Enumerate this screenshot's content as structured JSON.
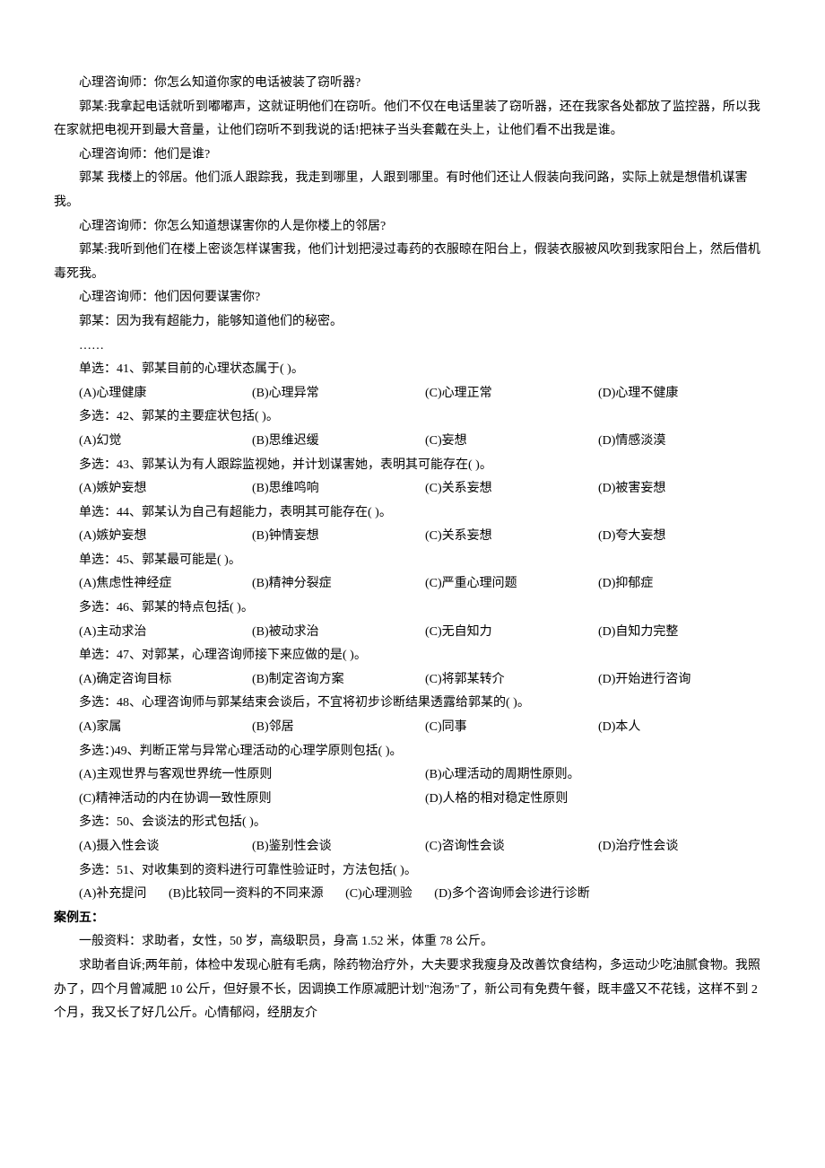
{
  "dialogue": [
    "心理咨询师：你怎么知道你家的电话被装了窃听器?",
    "郭某:我拿起电话就听到嘟嘟声，这就证明他们在窃听。他们不仅在电话里装了窃听器，还在我家各处都放了监控器，所以我在家就把电视开到最大音量，让他们窃听不到我说的话!把袜子当头套戴在头上，让他们看不出我是谁。",
    "心理咨询师：他们是谁?",
    "郭某 我楼上的邻居。他们派人跟踪我，我走到哪里，人跟到哪里。有时他们还让人假装向我问路，实际上就是想借机谋害我。",
    "心理咨询师：你怎么知道想谋害你的人是你楼上的邻居?",
    "郭某:我听到他们在楼上密谈怎样谋害我，他们计划把浸过毒药的衣服晾在阳台上，假装衣服被风吹到我家阳台上，然后借机毒死我。",
    "心理咨询师：他们因何要谋害你?",
    "郭某：因为我有超能力，能够知道他们的秘密。",
    "……"
  ],
  "questions": [
    {
      "stem": "单选：41、郭某目前的心理状态属于( )。",
      "layout": "four",
      "options": [
        "(A)心理健康",
        "(B)心理异常",
        "(C)心理正常",
        "(D)心理不健康"
      ]
    },
    {
      "stem": "多选：42、郭某的主要症状包括( )。",
      "layout": "four",
      "options": [
        "(A)幻觉",
        "(B)思维迟缓",
        "(C)妄想",
        "(D)情感淡漠"
      ]
    },
    {
      "stem": "多选：43、郭某认为有人跟踪监视她，并计划谋害她，表明其可能存在( )。",
      "layout": "four",
      "options": [
        "(A)嫉妒妄想",
        "(B)思维鸣响",
        "(C)关系妄想",
        "(D)被害妄想"
      ]
    },
    {
      "stem": "单选：44、郭某认为自己有超能力，表明其可能存在( )。",
      "layout": "four",
      "options": [
        "(A)嫉妒妄想",
        "(B)钟情妄想",
        "(C)关系妄想",
        "(D)夸大妄想"
      ]
    },
    {
      "stem": "单选：45、郭某最可能是( )。",
      "layout": "four",
      "options": [
        "(A)焦虑性神经症",
        "(B)精神分裂症",
        "(C)严重心理问题",
        "(D)抑郁症"
      ]
    },
    {
      "stem": "多选：46、郭某的特点包括( )。",
      "layout": "four",
      "options": [
        "(A)主动求治",
        "(B)被动求治",
        "(C)无自知力",
        "(D)自知力完整"
      ]
    },
    {
      "stem": "单选：47、对郭某，心理咨询师接下来应做的是( )。",
      "layout": "four",
      "options": [
        "(A)确定咨询目标",
        "(B)制定咨询方案",
        "(C)将郭某转介",
        "(D)开始进行咨询"
      ]
    },
    {
      "stem": "多选：48、心理咨询师与郭某结束会谈后，不宜将初步诊断结果透露给郭某的( )。",
      "layout": "four",
      "options": [
        "(A)家属",
        "(B)邻居",
        "(C)同事",
        "(D)本人"
      ]
    },
    {
      "stem": "多选：)49、判断正常与异常心理活动的心理学原则包括( )。",
      "layout": "two",
      "options": [
        "(A)主观世界与客观世界统一性原则",
        "(B)心理活动的周期性原则。",
        "(C)精神活动的内在协调一致性原则",
        "(D)人格的相对稳定性原则"
      ]
    },
    {
      "stem": "多选：50、会谈法的形式包括( )。",
      "layout": "four",
      "options": [
        "(A)摄入性会谈",
        "(B)鉴别性会谈",
        "(C)咨询性会谈",
        "(D)治疗性会谈"
      ]
    },
    {
      "stem": "多选：51、对收集到的资料进行可靠性验证时，方法包括( )。",
      "layout": "inline",
      "options": [
        "(A)补充提问",
        "(B)比较同一资料的不同来源",
        "(C)心理测验",
        "(D)多个咨询师会诊进行诊断"
      ]
    }
  ],
  "case5": {
    "heading": "案例五：",
    "paras": [
      "一般资料：求助者，女性，50 岁，高级职员，身高 1.52 米，体重 78 公斤。",
      "求助者自诉;两年前，体检中发现心脏有毛病，除药物治疗外，大夫要求我瘦身及改善饮食结构，多运动少吃油腻食物。我照办了，四个月曾减肥 10 公斤，但好景不长，因调换工作原减肥计划\"泡汤\"了，新公司有免费午餐，既丰盛又不花钱，这样不到 2 个月，我又长了好几公斤。心情郁闷，经朋友介"
    ]
  }
}
